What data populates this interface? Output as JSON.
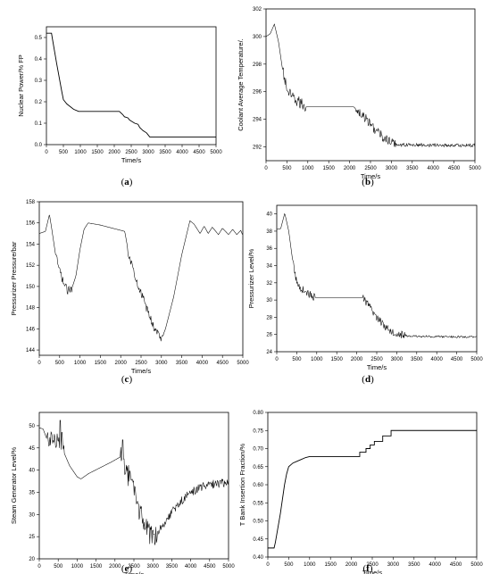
{
  "chart_data": [
    {
      "id": "a",
      "type": "line",
      "caption_letter": "a",
      "xlabel": "Time/s",
      "ylabel": "Nuclear Power/% FP",
      "xlim": [
        0,
        5000
      ],
      "ylim": [
        0.0,
        0.55
      ],
      "xticks": [
        0,
        500,
        1000,
        1500,
        2000,
        2500,
        3000,
        3500,
        4000,
        4500,
        5000
      ],
      "yticks": [
        0.0,
        0.1,
        0.2,
        0.3,
        0.4,
        0.5
      ],
      "ytick_labels": [
        "0.0",
        "0.1",
        "0.2",
        "0.3",
        "0.4",
        "0.5"
      ],
      "series": [
        {
          "points": [
            [
              0,
              0.52
            ],
            [
              150,
              0.52
            ],
            [
              170,
              0.5
            ],
            [
              300,
              0.38
            ],
            [
              450,
              0.25
            ],
            [
              500,
              0.21
            ],
            [
              600,
              0.19
            ],
            [
              800,
              0.165
            ],
            [
              950,
              0.155
            ],
            [
              2150,
              0.155
            ],
            [
              2250,
              0.14
            ],
            [
              2300,
              0.13
            ],
            [
              2400,
              0.125
            ],
            [
              2450,
              0.115
            ],
            [
              2500,
              0.11
            ],
            [
              2600,
              0.1
            ],
            [
              2700,
              0.095
            ],
            [
              2750,
              0.08
            ],
            [
              2850,
              0.065
            ],
            [
              2950,
              0.055
            ],
            [
              3000,
              0.045
            ],
            [
              3050,
              0.035
            ],
            [
              5000,
              0.035
            ]
          ]
        }
      ]
    },
    {
      "id": "b",
      "type": "line",
      "caption_letter": "b",
      "xlabel": "Time/s",
      "ylabel": "Coolant Average Temperature/.",
      "xlim": [
        0,
        5000
      ],
      "ylim": [
        291,
        302
      ],
      "xticks": [
        0,
        500,
        1000,
        1500,
        2000,
        2500,
        3000,
        3500,
        4000,
        4500,
        5000
      ],
      "yticks": [
        292,
        294,
        296,
        298,
        300,
        302
      ],
      "ytick_labels": [
        "292",
        "294",
        "296",
        "298",
        "300",
        "302"
      ],
      "series": [
        {
          "points": [
            [
              0,
              300.0
            ],
            [
              100,
              300.2
            ],
            [
              200,
              300.9
            ],
            [
              300,
              299.6
            ],
            [
              400,
              297.5
            ],
            [
              500,
              296.2
            ],
            [
              600,
              295.6
            ],
            [
              800,
              295.2
            ],
            [
              950,
              294.9
            ],
            [
              2100,
              294.9
            ],
            [
              2200,
              294.6
            ],
            [
              2400,
              294.0
            ],
            [
              2600,
              293.3
            ],
            [
              2800,
              292.7
            ],
            [
              3000,
              292.3
            ],
            [
              3200,
              292.15
            ],
            [
              5000,
              292.1
            ]
          ]
        }
      ],
      "noise": [
        [
          400,
          950,
          0.45
        ],
        [
          2150,
          3100,
          0.35
        ],
        [
          3100,
          5000,
          0.12
        ]
      ]
    },
    {
      "id": "c",
      "type": "line",
      "caption_letter": "c",
      "xlabel": "Time/s",
      "ylabel": "Pressurizer Pressure/bar",
      "xlim": [
        0,
        5000
      ],
      "ylim": [
        143.5,
        158
      ],
      "xticks": [
        0,
        500,
        1000,
        1500,
        2000,
        2500,
        3000,
        3500,
        4000,
        4500,
        5000
      ],
      "yticks": [
        144,
        146,
        148,
        150,
        152,
        154,
        156,
        158
      ],
      "ytick_labels": [
        "144",
        "146",
        "148",
        "150",
        "152",
        "154",
        "156",
        "158"
      ],
      "series": [
        {
          "points": [
            [
              0,
              155.0
            ],
            [
              150,
              155.2
            ],
            [
              250,
              156.8
            ],
            [
              300,
              155.6
            ],
            [
              400,
              153.0
            ],
            [
              500,
              151.5
            ],
            [
              600,
              150.3
            ],
            [
              700,
              149.6
            ],
            [
              800,
              149.8
            ],
            [
              900,
              151.0
            ],
            [
              1000,
              153.5
            ],
            [
              1100,
              155.4
            ],
            [
              1200,
              156.0
            ],
            [
              1500,
              155.8
            ],
            [
              2100,
              155.2
            ],
            [
              2200,
              153.0
            ],
            [
              2400,
              150.5
            ],
            [
              2600,
              148.3
            ],
            [
              2800,
              146.3
            ],
            [
              3000,
              145.0
            ],
            [
              3100,
              146.0
            ],
            [
              3300,
              149.0
            ],
            [
              3500,
              153.0
            ],
            [
              3700,
              156.2
            ],
            [
              3800,
              155.9
            ],
            [
              3950,
              155.0
            ],
            [
              4050,
              155.7
            ],
            [
              4150,
              155.0
            ],
            [
              4250,
              155.6
            ],
            [
              4400,
              154.9
            ],
            [
              4500,
              155.5
            ],
            [
              4650,
              154.9
            ],
            [
              4750,
              155.4
            ],
            [
              4850,
              154.9
            ],
            [
              4950,
              155.3
            ],
            [
              5000,
              154.8
            ]
          ]
        }
      ],
      "noise": [
        [
          400,
          800,
          0.35
        ],
        [
          2150,
          3050,
          0.4
        ]
      ]
    },
    {
      "id": "d",
      "type": "line",
      "caption_letter": "d",
      "xlabel": "Time/s",
      "ylabel": "Pressurizer Level/%",
      "xlim": [
        0,
        5000
      ],
      "ylim": [
        24,
        41
      ],
      "xticks": [
        0,
        500,
        1000,
        1500,
        2000,
        2500,
        3000,
        3500,
        4000,
        4500,
        5000
      ],
      "yticks": [
        24,
        26,
        28,
        30,
        32,
        34,
        36,
        38,
        40
      ],
      "ytick_labels": [
        "24",
        "26",
        "28",
        "30",
        "32",
        "34",
        "36",
        "38",
        "40"
      ],
      "series": [
        {
          "points": [
            [
              0,
              38.2
            ],
            [
              100,
              38.3
            ],
            [
              200,
              40.1
            ],
            [
              300,
              38.0
            ],
            [
              400,
              34.5
            ],
            [
              500,
              32.0
            ],
            [
              600,
              31.4
            ],
            [
              800,
              30.7
            ],
            [
              950,
              30.3
            ],
            [
              2150,
              30.3
            ],
            [
              2300,
              29.3
            ],
            [
              2500,
              28.0
            ],
            [
              2700,
              27.0
            ],
            [
              2900,
              26.3
            ],
            [
              3100,
              26.0
            ],
            [
              3300,
              25.8
            ],
            [
              5000,
              25.7
            ]
          ]
        }
      ],
      "noise": [
        [
          400,
          950,
          0.45
        ],
        [
          2150,
          3200,
          0.45
        ],
        [
          3200,
          5000,
          0.12
        ]
      ]
    },
    {
      "id": "e",
      "type": "line",
      "caption_letter": "e",
      "xlabel": "Time/s",
      "ylabel": "Steam Generator Level/%",
      "xlim": [
        0,
        5000
      ],
      "ylim": [
        20,
        53
      ],
      "xticks": [
        0,
        500,
        1000,
        1500,
        2000,
        2500,
        3000,
        3500,
        4000,
        4500,
        5000
      ],
      "yticks": [
        20,
        25,
        30,
        35,
        40,
        45,
        50
      ],
      "ytick_labels": [
        "20",
        "25",
        "30",
        "35",
        "40",
        "45",
        "50"
      ],
      "series": [
        {
          "points": [
            [
              0,
              49.5
            ],
            [
              100,
              49.3
            ],
            [
              200,
              47.0
            ],
            [
              400,
              46.8
            ],
            [
              550,
              46.5
            ],
            [
              650,
              44.0
            ],
            [
              800,
              41.0
            ],
            [
              1000,
              38.5
            ],
            [
              1100,
              38.0
            ],
            [
              1300,
              39.2
            ],
            [
              1600,
              40.5
            ],
            [
              1900,
              41.8
            ],
            [
              2150,
              43.0
            ],
            [
              2300,
              40.0
            ],
            [
              2500,
              35.0
            ],
            [
              2700,
              29.5
            ],
            [
              2900,
              25.5
            ],
            [
              3000,
              25.2
            ],
            [
              3200,
              27.0
            ],
            [
              3500,
              30.5
            ],
            [
              3800,
              33.5
            ],
            [
              4100,
              35.5
            ],
            [
              4400,
              36.5
            ],
            [
              4700,
              37.0
            ],
            [
              5000,
              37.2
            ]
          ]
        }
      ],
      "noise": [
        [
          200,
          650,
          1.8
        ],
        [
          2150,
          3150,
          2.6
        ],
        [
          3150,
          5000,
          1.0
        ]
      ],
      "spikes": [
        [
          560,
          51.2
        ],
        [
          600,
          48.5
        ],
        [
          2200,
          46.8
        ],
        [
          2230,
          42.5
        ]
      ]
    },
    {
      "id": "f",
      "type": "line",
      "caption_letter": "f",
      "xlabel": "Time/s",
      "ylabel": "T Bank Insertion Fraction/%",
      "xlim": [
        0,
        5000
      ],
      "ylim": [
        0.4,
        0.8
      ],
      "xticks": [
        0,
        500,
        1000,
        1500,
        2000,
        2500,
        3000,
        3500,
        4000,
        4500,
        5000
      ],
      "yticks": [
        0.4,
        0.45,
        0.5,
        0.55,
        0.6,
        0.65,
        0.7,
        0.75,
        0.8
      ],
      "ytick_labels": [
        "0.40",
        "0.45",
        "0.50",
        "0.55",
        "0.60",
        "0.65",
        "0.70",
        "0.75",
        "0.80"
      ],
      "series": [
        {
          "points": [
            [
              0,
              0.425
            ],
            [
              150,
              0.425
            ],
            [
              180,
              0.44
            ],
            [
              300,
              0.52
            ],
            [
              400,
              0.6
            ],
            [
              450,
              0.63
            ],
            [
              500,
              0.65
            ],
            [
              600,
              0.66
            ],
            [
              700,
              0.665
            ],
            [
              800,
              0.67
            ],
            [
              900,
              0.675
            ],
            [
              1000,
              0.678
            ],
            [
              2200,
              0.678
            ],
            [
              2200,
              0.69
            ],
            [
              2350,
              0.69
            ],
            [
              2350,
              0.7
            ],
            [
              2450,
              0.7
            ],
            [
              2450,
              0.71
            ],
            [
              2550,
              0.71
            ],
            [
              2550,
              0.72
            ],
            [
              2750,
              0.72
            ],
            [
              2750,
              0.735
            ],
            [
              2950,
              0.735
            ],
            [
              2950,
              0.75
            ],
            [
              5000,
              0.75
            ]
          ]
        }
      ]
    }
  ]
}
